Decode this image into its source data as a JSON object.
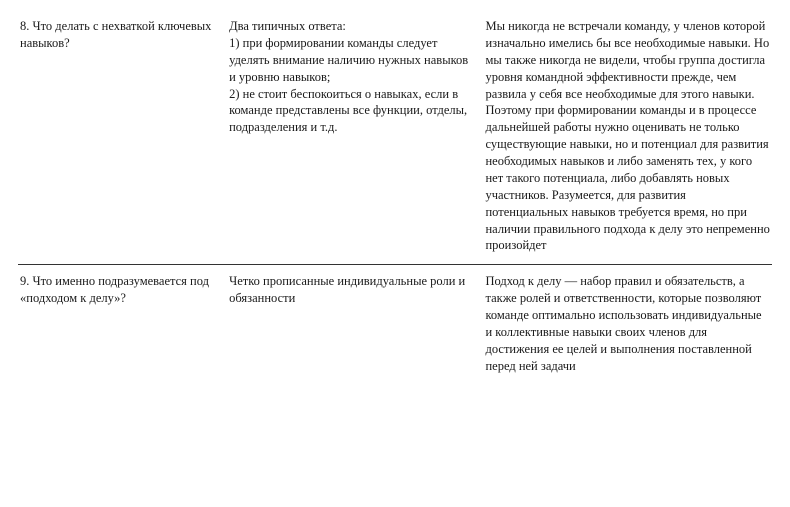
{
  "rows": [
    {
      "question": "8. Что делать с нехваткой ключевых навыков?",
      "typical_intro": "Два типичных ответа:",
      "typical_1": "1) при формировании команды следует уделять внимание наличию нужных навыков и уровню навыков;",
      "typical_2": "2) не стоит беспокоиться о навыках, если в команде представлены все функции, отделы, подразделения и т.д.",
      "comment": "Мы никогда не встречали команду, у членов которой изначально имелись бы все необходимые навыки. Но мы также никогда не видели, чтобы группа достигла уровня командной эффективности прежде, чем развила у себя все необходимые для этого навыки. Поэтому при формировании команды и в процессе дальнейшей работы нужно оценивать не только существующие навыки, но и потенциал для развития необходимых навыков и либо заменять тех, у кого нет такого потенциала, либо добавлять новых участников. Разумеется, для развития потенциальных навыков требуется время, но при наличии правильного подхода к делу это непременно произойдет"
    },
    {
      "question": "9. Что именно подразумевается под «подходом к делу»?",
      "typical_intro": "Четко прописанные индивидуальные роли и обязанности",
      "typical_1": "",
      "typical_2": "",
      "comment": "Подход к делу — набор правил и обязательств, а также ролей и ответственности, которые позволяют команде оптимально использовать индивидуальные и коллективные навыки своих членов для достижения ее целей и выполнения поставленной перед ней задачи"
    }
  ],
  "styling": {
    "font_family": "Georgia, 'Times New Roman', serif",
    "font_size_pt": 12.5,
    "line_height": 1.35,
    "text_color": "#1a1a1a",
    "background_color": "#ffffff",
    "border_color": "#333333",
    "column_widths_pct": [
      28,
      34,
      38
    ]
  }
}
